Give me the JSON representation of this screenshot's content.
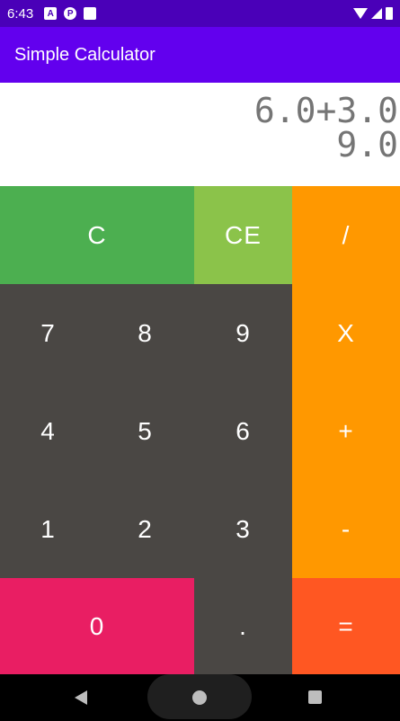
{
  "status_bar": {
    "time": "6:43",
    "icons": [
      "a-icon",
      "p-icon",
      "sd-card-icon",
      "wifi-icon",
      "signal-icon",
      "battery-icon"
    ]
  },
  "app_bar": {
    "title": "Simple Calculator"
  },
  "display": {
    "expression": "6.0+3.0",
    "result": "9.0"
  },
  "keys": {
    "clear": "C",
    "clear_entry": "CE",
    "divide": "/",
    "seven": "7",
    "eight": "8",
    "nine": "9",
    "multiply": "X",
    "four": "4",
    "five": "5",
    "six": "6",
    "add": "+",
    "one": "1",
    "two": "2",
    "three": "3",
    "subtract": "-",
    "zero": "0",
    "dot": ".",
    "equals": "="
  },
  "colors": {
    "status_bar": "#4a00b8",
    "app_bar": "#6200ee",
    "clear": "#4caf50",
    "clear_entry": "#8bc34a",
    "operator": "#ff9800",
    "digit": "#4a4744",
    "zero": "#e91e63",
    "equals": "#ff5722"
  }
}
